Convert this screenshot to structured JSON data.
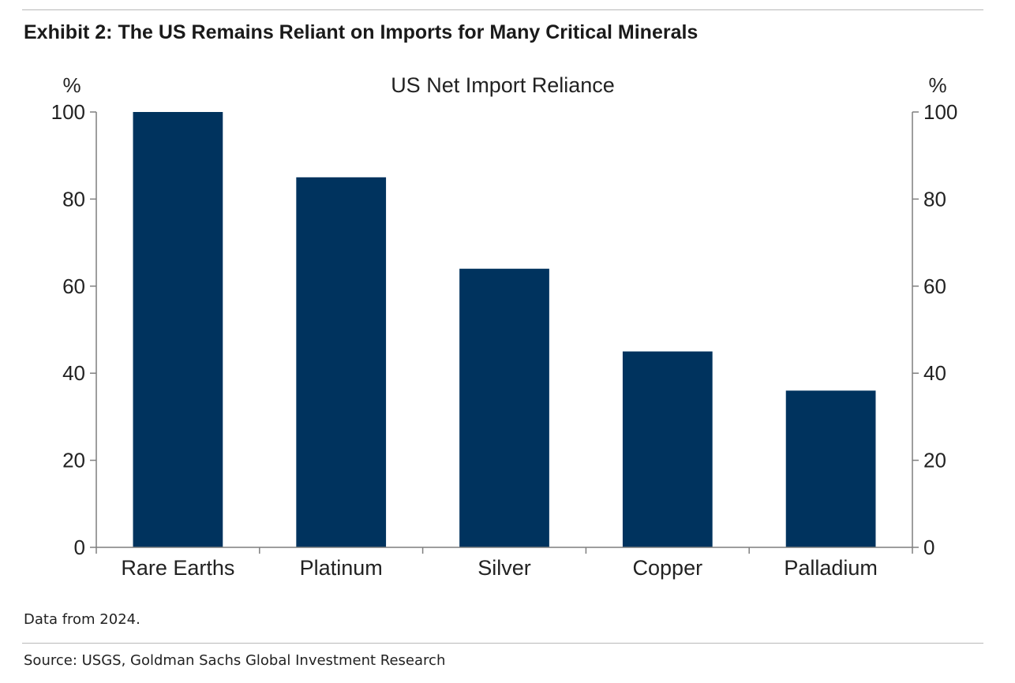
{
  "exhibit_title": "Exhibit 2: The US Remains Reliant on Imports for Many Critical Minerals",
  "note": "Data from 2024.",
  "source": "Source: USGS, Goldman Sachs Global Investment Research",
  "colors": {
    "bar": "#00335e",
    "axis": "#7f7f7f"
  },
  "chart_data": {
    "type": "bar",
    "title": "US Net Import Reliance",
    "ylabel_left": "%",
    "ylabel_right": "%",
    "categories": [
      "Rare Earths",
      "Platinum",
      "Silver",
      "Copper",
      "Palladium"
    ],
    "values": [
      100,
      85,
      64,
      45,
      36
    ],
    "ylim": [
      0,
      100
    ],
    "yticks": [
      0,
      20,
      40,
      60,
      80,
      100
    ],
    "grid": false,
    "legend": "none"
  }
}
